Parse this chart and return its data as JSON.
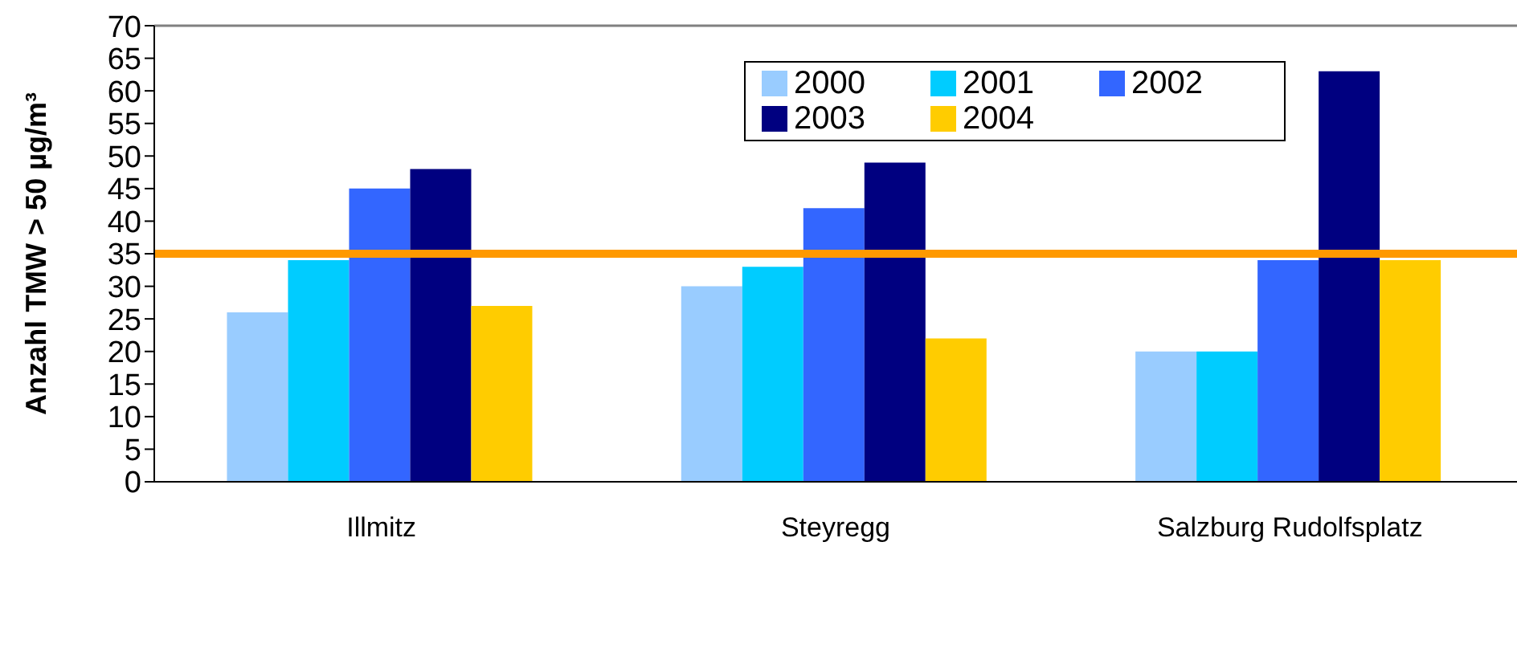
{
  "chart_data": {
    "type": "bar",
    "ylabel": "Anzahl TMW > 50 µg/m³",
    "categories": [
      "Illmitz",
      "Steyregg",
      "Salzburg Rudolfsplatz"
    ],
    "series": [
      {
        "name": "2000",
        "color": "#99ccff",
        "values": [
          26,
          30,
          20
        ]
      },
      {
        "name": "2001",
        "color": "#00ccff",
        "values": [
          34,
          33,
          20
        ]
      },
      {
        "name": "2002",
        "color": "#3366ff",
        "values": [
          45,
          42,
          34
        ]
      },
      {
        "name": "2003",
        "color": "#000080",
        "values": [
          48,
          49,
          63
        ]
      },
      {
        "name": "2004",
        "color": "#ffcc00",
        "values": [
          27,
          22,
          34
        ]
      }
    ],
    "ylim": [
      0,
      70
    ],
    "yticks": [
      0,
      5,
      10,
      15,
      20,
      25,
      30,
      35,
      40,
      45,
      50,
      55,
      60,
      65,
      70
    ],
    "ref_lines": [
      {
        "axis": "y",
        "value": 35,
        "color": "#ff9900"
      }
    ],
    "grid": false,
    "legend": "top"
  }
}
